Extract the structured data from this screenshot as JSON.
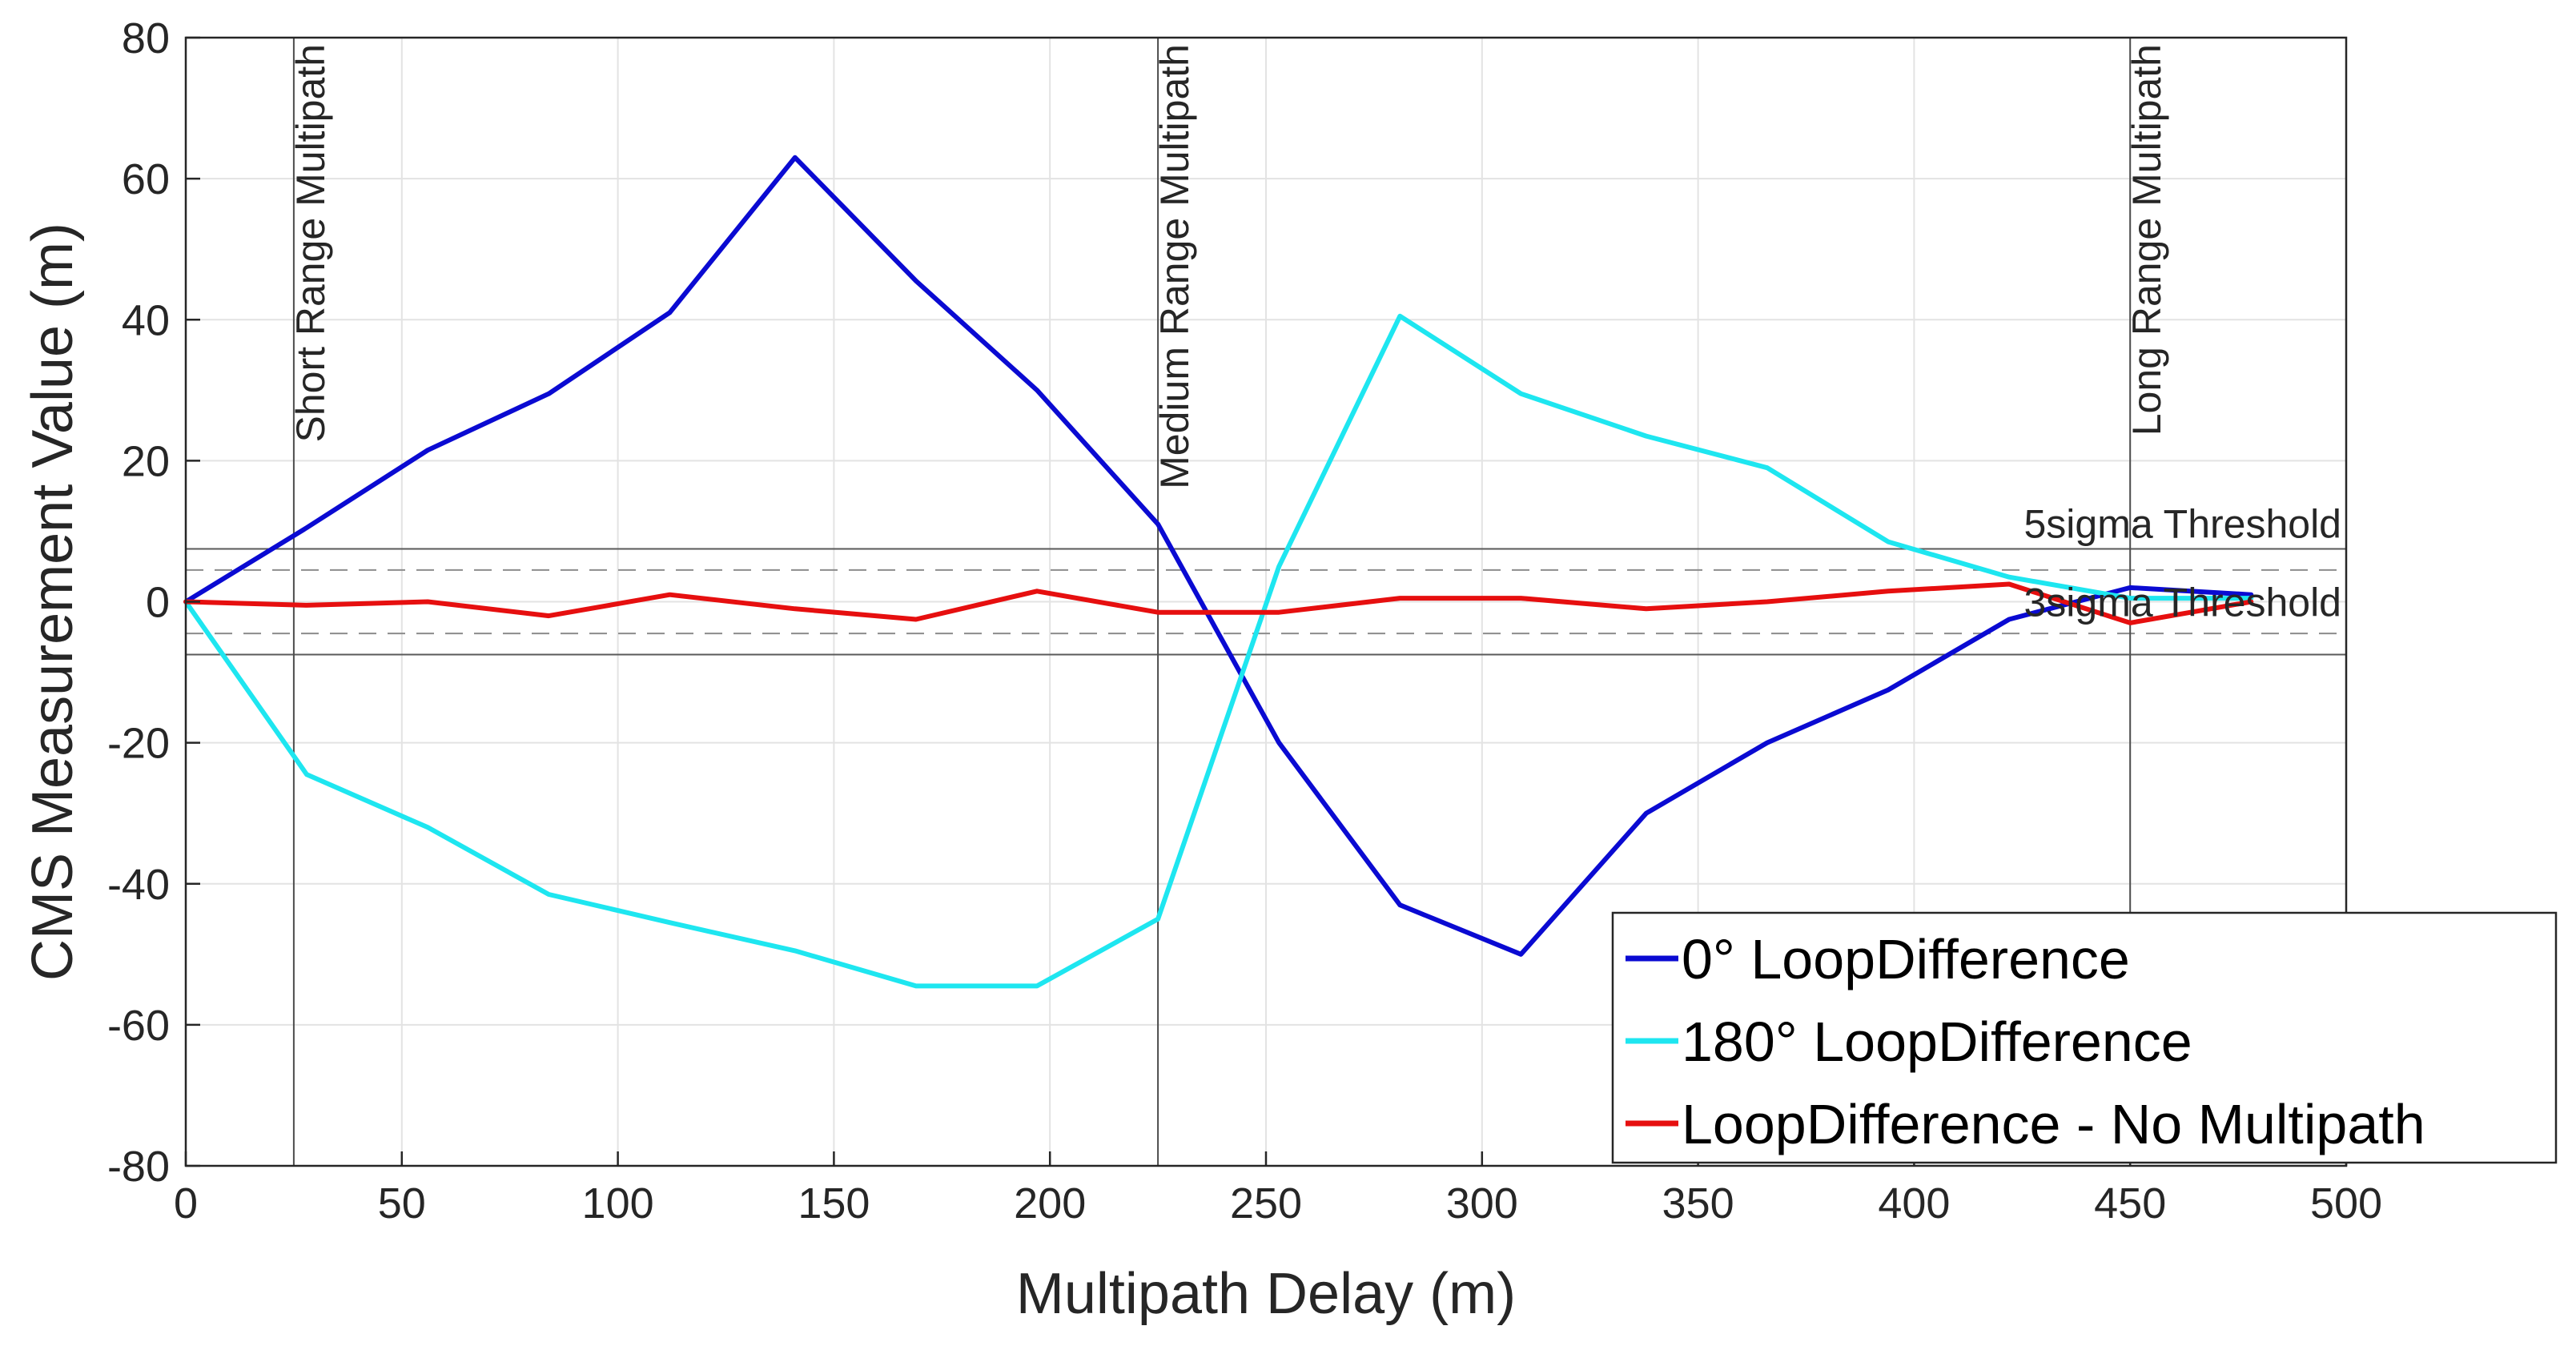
{
  "chart_data": {
    "type": "line",
    "title": "",
    "xlabel": "Multipath Delay (m)",
    "ylabel": "CMS Measurement Value (m)",
    "xlim": [
      0,
      500
    ],
    "ylim": [
      -80,
      80
    ],
    "xticks": [
      0,
      50,
      100,
      150,
      200,
      250,
      300,
      350,
      400,
      450,
      500
    ],
    "yticks": [
      -80,
      -60,
      -40,
      -20,
      0,
      20,
      40,
      60,
      80
    ],
    "grid": true,
    "legend_position": "bottom-right",
    "series": [
      {
        "name": "0° LoopDifference",
        "color": "#0a0ad2",
        "x": [
          0,
          28,
          56,
          84,
          112,
          141,
          169,
          197,
          225,
          253,
          281,
          309,
          338,
          366,
          394,
          422,
          450,
          478
        ],
        "values": [
          0,
          10.5,
          21.5,
          29.5,
          41,
          63,
          45.5,
          30,
          11,
          -20,
          -43,
          -50,
          -30,
          -20,
          -12.5,
          -2.5,
          2,
          1
        ]
      },
      {
        "name": "180° LoopDifference",
        "color": "#1ee6f0",
        "x": [
          0,
          28,
          56,
          84,
          112,
          141,
          169,
          197,
          225,
          253,
          281,
          309,
          338,
          366,
          394,
          422,
          450,
          478
        ],
        "values": [
          0,
          -24.5,
          -32,
          -41.5,
          -45.5,
          -49.5,
          -54.5,
          -54.5,
          -45,
          5,
          40.5,
          29.5,
          23.5,
          19,
          8.5,
          3.5,
          0.5,
          0.5
        ]
      },
      {
        "name": "LoopDifference - No Multipath",
        "color": "#e60f0f",
        "x": [
          0,
          28,
          56,
          84,
          112,
          141,
          169,
          197,
          225,
          253,
          281,
          309,
          338,
          366,
          394,
          422,
          450,
          478
        ],
        "values": [
          0,
          -0.5,
          0,
          -2,
          1,
          -1,
          -2.5,
          1.5,
          -1.5,
          -1.5,
          0.5,
          0.5,
          -1,
          0,
          1.5,
          2.5,
          -3,
          0
        ]
      }
    ],
    "vertical_lines": [
      {
        "x": 25,
        "label": "Short Range Multipath"
      },
      {
        "x": 225,
        "label": "Medium Range Multipath"
      },
      {
        "x": 450,
        "label": "Long Range Multipath"
      }
    ],
    "thresholds": [
      {
        "label": "5sigma Threshold",
        "value": 7.5,
        "style": "solid"
      },
      {
        "label": "3sigma Threshold",
        "value": 4.5,
        "style": "dashed"
      }
    ]
  }
}
